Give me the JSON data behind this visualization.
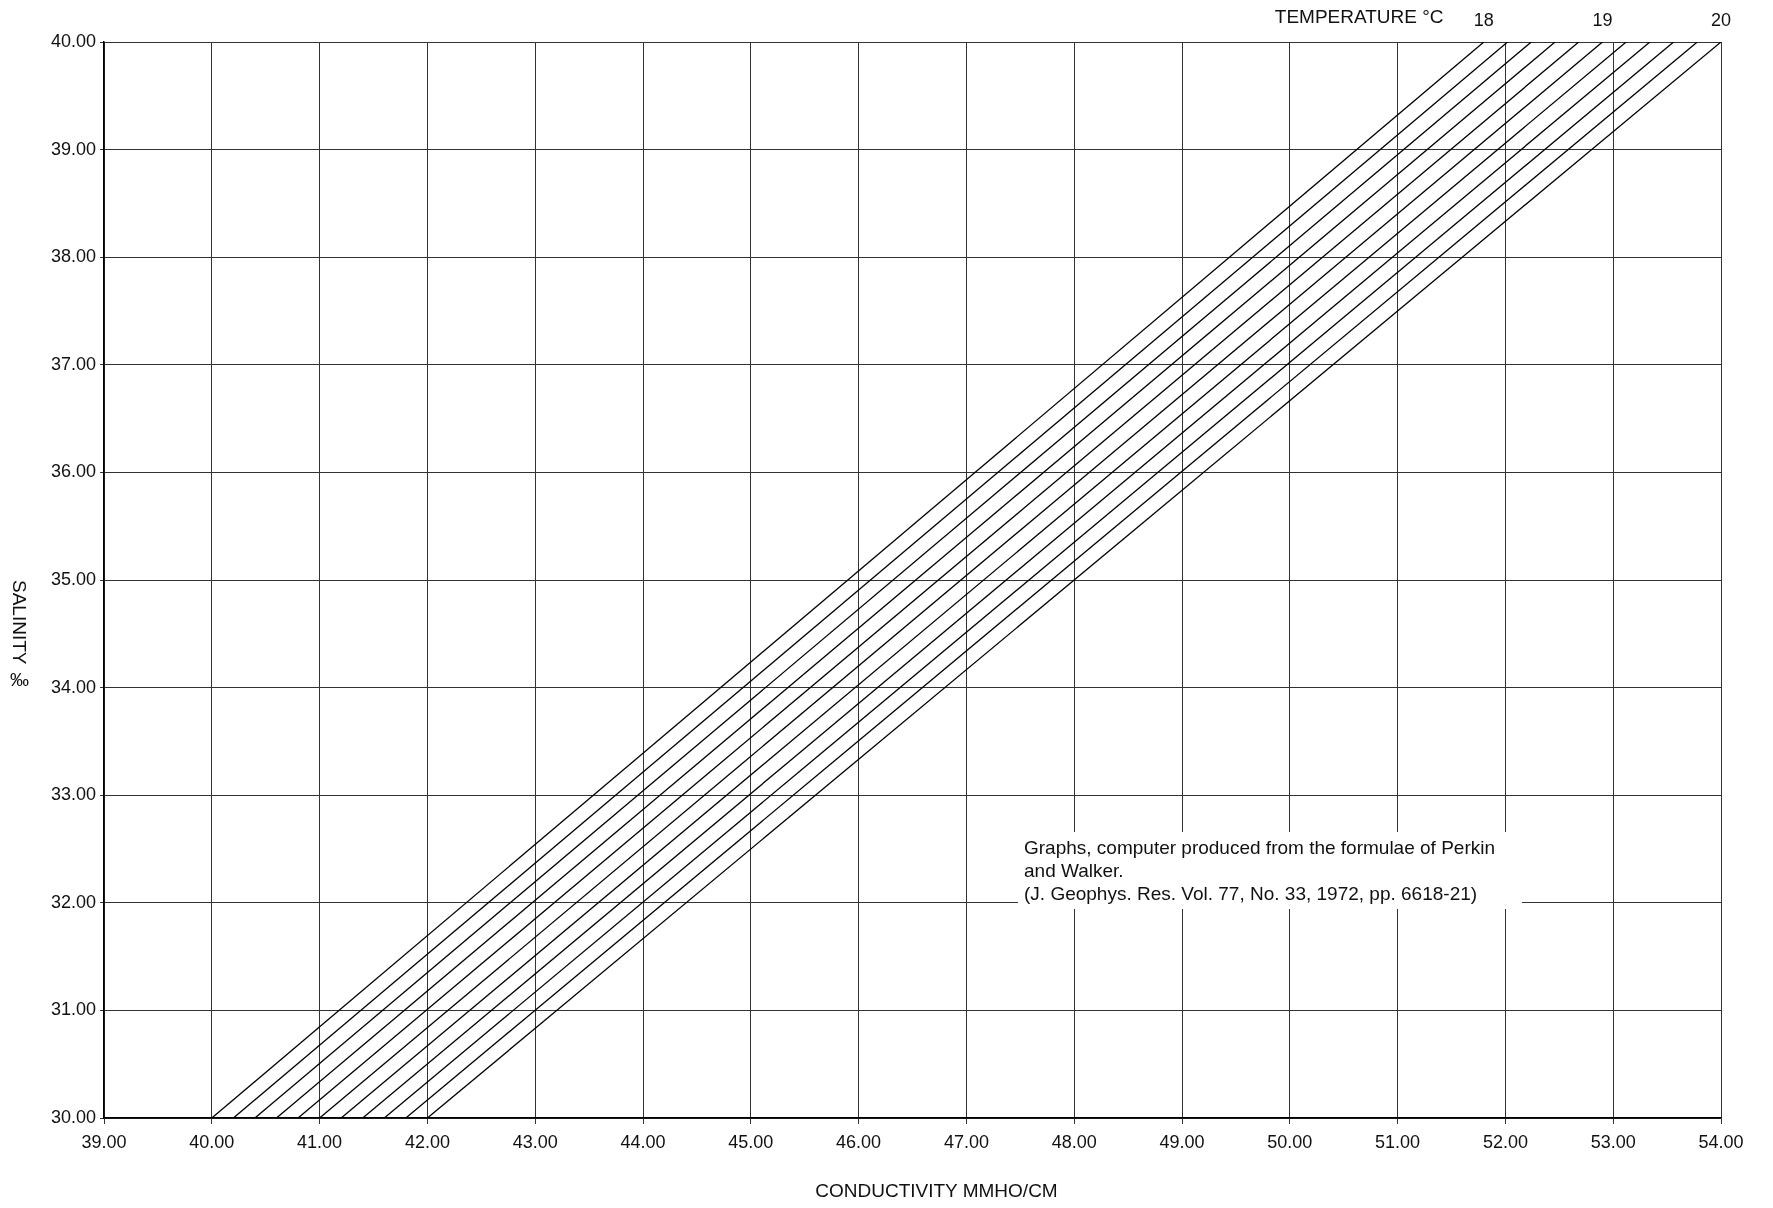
{
  "chart_data": {
    "type": "line",
    "xlabel": "CONDUCTIVITY MMHO/CM",
    "ylabel": "SALINITY ‰",
    "legend_title": "TEMPERATURE °C",
    "annotations": [
      "Graphs, computer produced from the formulae of Perkin and Walker.\n(J. Geophys. Res. Vol. 77, No. 33, 1972, pp. 6618-21)"
    ],
    "xlim": [
      39,
      54
    ],
    "ylim": [
      30,
      40
    ],
    "xticks": [
      {
        "value": 39,
        "label": "39.00"
      },
      {
        "value": 40,
        "label": "40.00"
      },
      {
        "value": 41,
        "label": "41.00"
      },
      {
        "value": 42,
        "label": "42.00"
      },
      {
        "value": 43,
        "label": "43.00"
      },
      {
        "value": 44,
        "label": "44.00"
      },
      {
        "value": 45,
        "label": "45.00"
      },
      {
        "value": 46,
        "label": "46.00"
      },
      {
        "value": 47,
        "label": "47.00"
      },
      {
        "value": 48,
        "label": "48.00"
      },
      {
        "value": 49,
        "label": "49.00"
      },
      {
        "value": 50,
        "label": "50.00"
      },
      {
        "value": 51,
        "label": "51.00"
      },
      {
        "value": 52,
        "label": "52.00"
      },
      {
        "value": 53,
        "label": "53.00"
      },
      {
        "value": 54,
        "label": "54.00"
      }
    ],
    "yticks": [
      {
        "value": 30,
        "label": "30.00"
      },
      {
        "value": 31,
        "label": "31.00"
      },
      {
        "value": 32,
        "label": "32.00"
      },
      {
        "value": 33,
        "label": "33.00"
      },
      {
        "value": 34,
        "label": "34.00"
      },
      {
        "value": 35,
        "label": "35.00"
      },
      {
        "value": 36,
        "label": "36.00"
      },
      {
        "value": 37,
        "label": "37.00"
      },
      {
        "value": 38,
        "label": "38.00"
      },
      {
        "value": 39,
        "label": "39.00"
      },
      {
        "value": 40,
        "label": "40.00"
      }
    ],
    "grid": true,
    "legend": false,
    "marker": "none",
    "line_style": "solid",
    "series": [
      {
        "name": "18",
        "color": "#000000",
        "x": [
          40.0,
          51.8
        ],
        "values": [
          30,
          40
        ]
      },
      {
        "color": "#000000",
        "x": [
          40.2,
          52.02
        ],
        "values": [
          30,
          40
        ]
      },
      {
        "color": "#000000",
        "x": [
          40.4,
          52.24
        ],
        "values": [
          30,
          40
        ]
      },
      {
        "color": "#000000",
        "x": [
          40.6,
          52.46
        ],
        "values": [
          30,
          40
        ]
      },
      {
        "color": "#000000",
        "x": [
          40.8,
          52.68
        ],
        "values": [
          30,
          40
        ]
      },
      {
        "name": "19",
        "color": "#000000",
        "x": [
          41.0,
          52.9
        ],
        "values": [
          30,
          40
        ]
      },
      {
        "color": "#000000",
        "x": [
          41.2,
          53.12
        ],
        "values": [
          30,
          40
        ]
      },
      {
        "color": "#000000",
        "x": [
          41.4,
          53.34
        ],
        "values": [
          30,
          40
        ]
      },
      {
        "color": "#000000",
        "x": [
          41.6,
          53.56
        ],
        "values": [
          30,
          40
        ]
      },
      {
        "color": "#000000",
        "x": [
          41.8,
          53.78
        ],
        "values": [
          30,
          40
        ]
      },
      {
        "name": "20",
        "color": "#000000",
        "x": [
          42.0,
          54.0
        ],
        "values": [
          30,
          40
        ]
      }
    ]
  }
}
